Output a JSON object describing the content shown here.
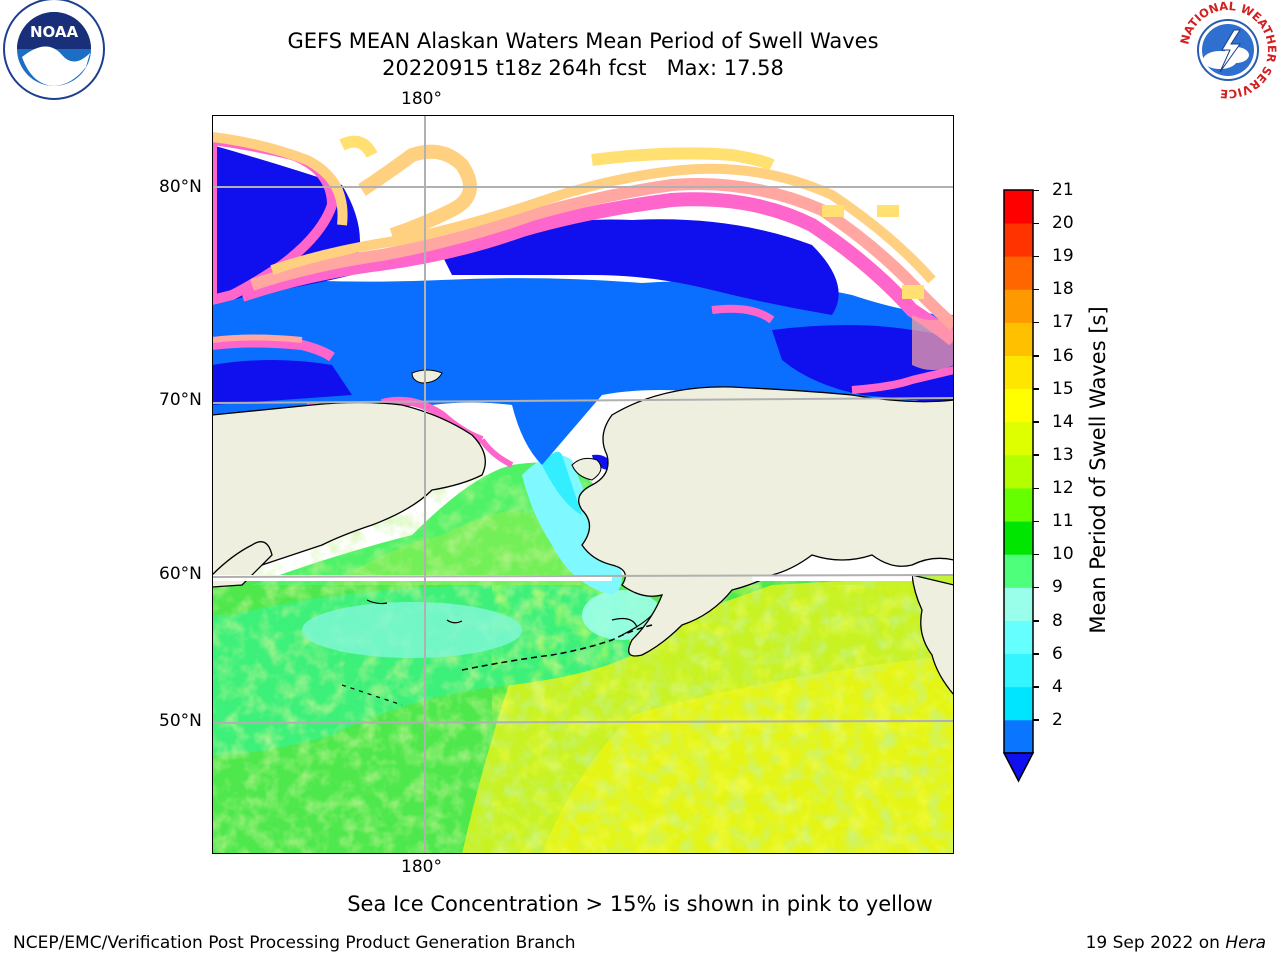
{
  "title": {
    "line1": "GEFS MEAN Alaskan Waters Mean Period of Swell Waves",
    "line2": "20220915 t18z 264h fcst   Max: 17.58"
  },
  "map": {
    "lon_labels": {
      "top": "180°",
      "bottom": "180°"
    },
    "lat_labels": [
      "80°N",
      "70°N",
      "60°N",
      "50°N"
    ],
    "land_color": "#efefdf",
    "ice_colors": [
      "#ff66cc",
      "#ffa7a0",
      "#ffd080",
      "#ffe070"
    ]
  },
  "colorbar": {
    "label": "Mean Period of Swell Waves [s]",
    "ticks": [
      "21",
      "20",
      "19",
      "18",
      "17",
      "16",
      "15",
      "14",
      "13",
      "12",
      "11",
      "10",
      "9",
      "8",
      "6",
      "4",
      "2"
    ],
    "colors_bottom_to_top": [
      "#0a75ff",
      "#00e5ff",
      "#33f5ff",
      "#66ffff",
      "#99ffea",
      "#4dff7a",
      "#00e600",
      "#66ff00",
      "#b3ff00",
      "#ddff00",
      "#ffff00",
      "#ffe600",
      "#ffc000",
      "#ff9900",
      "#ff6600",
      "#ff3300",
      "#ff0000"
    ],
    "under_color": "#1010ee"
  },
  "caption": "Sea Ice Concentration > 15% is shown in pink to yellow",
  "footer": {
    "left": "NCEP/EMC/Verification Post Processing Product Generation Branch",
    "right_date": "19 Sep 2022 on ",
    "right_host": "Hera"
  },
  "logos": {
    "noaa_text": "NOAA",
    "nws_ring_text": "NATIONAL WEATHER SERVICE"
  }
}
